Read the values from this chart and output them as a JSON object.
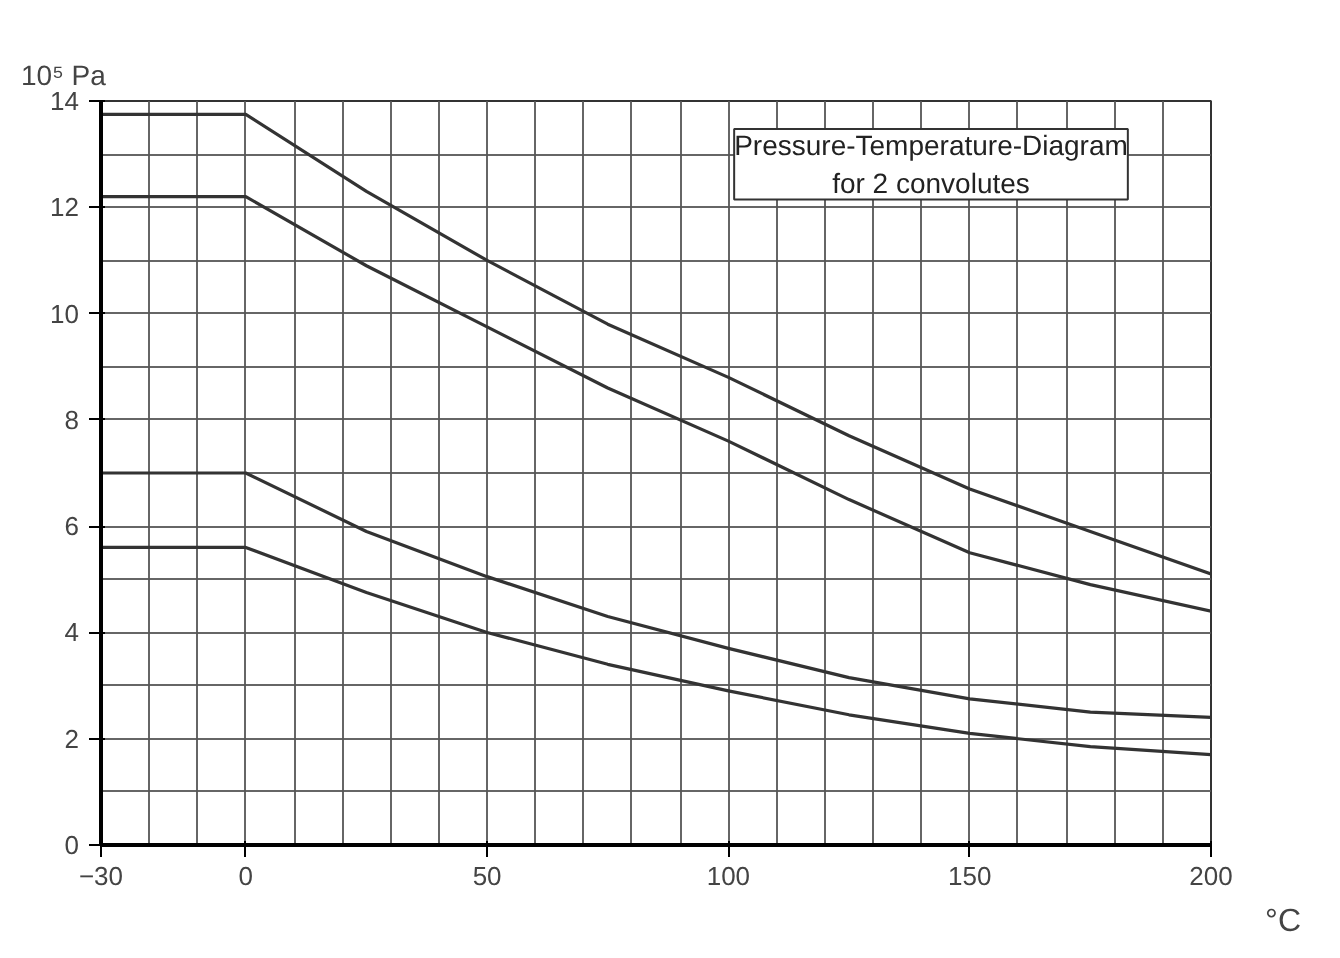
{
  "chart_data": {
    "type": "line",
    "title": "Pressure-Temperature-Diagram\nfor 2 convolutes",
    "xlabel": "°C",
    "ylabel": "10⁵ Pa",
    "x": [
      -30,
      0,
      25,
      50,
      75,
      100,
      125,
      150,
      175,
      200
    ],
    "series": [
      {
        "color": "#333333",
        "values": [
          13.75,
          13.75,
          12.3,
          11.0,
          9.8,
          8.8,
          7.7,
          6.7,
          5.9,
          5.1
        ]
      },
      {
        "color": "#333333",
        "values": [
          12.2,
          12.2,
          10.9,
          9.75,
          8.6,
          7.6,
          6.5,
          5.5,
          4.9,
          4.4
        ]
      },
      {
        "color": "#333333",
        "values": [
          7.0,
          7.0,
          5.9,
          5.05,
          4.3,
          3.7,
          3.15,
          2.75,
          2.5,
          2.4
        ]
      },
      {
        "color": "#333333",
        "values": [
          5.6,
          5.6,
          4.75,
          4.0,
          3.4,
          2.9,
          2.45,
          2.1,
          1.85,
          1.7
        ]
      }
    ],
    "xlim": [
      -30,
      200
    ],
    "ylim": [
      0,
      14
    ],
    "xticks": [
      -30,
      0,
      50,
      100,
      150,
      200
    ],
    "yticks": [
      0,
      2,
      4,
      6,
      8,
      10,
      12,
      14
    ],
    "grid": true,
    "marker": "none",
    "line_style": "solid"
  }
}
